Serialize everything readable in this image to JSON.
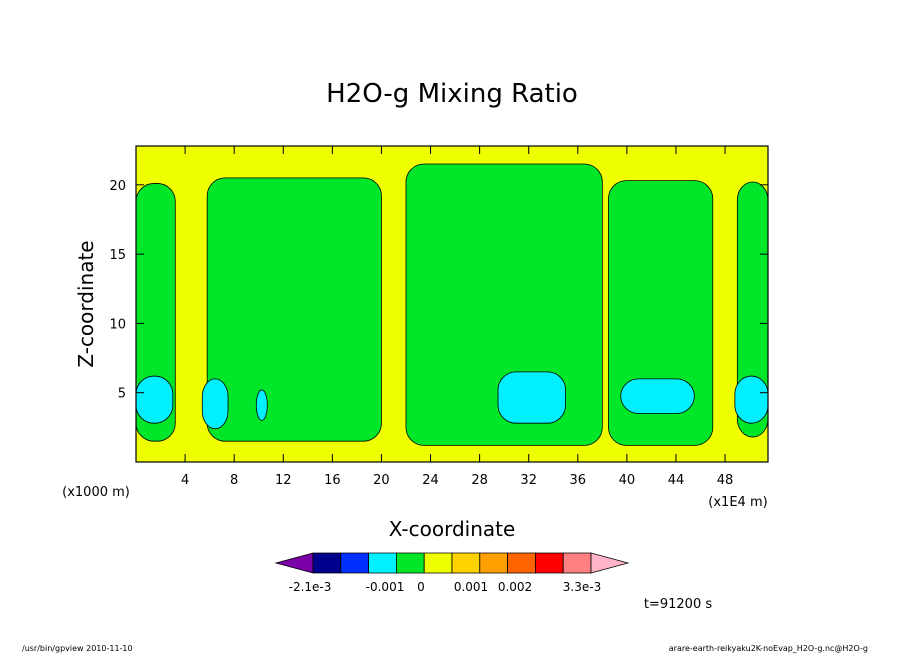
{
  "chart_data": {
    "type": "heatmap",
    "title": "H2O-g Mixing Ratio",
    "xlabel": "X-coordinate",
    "ylabel": "Z-coordinate",
    "x_unit_label": "(x1E4 m)",
    "y_unit_label": "(x1000 m)",
    "xlim": [
      0,
      51.5
    ],
    "ylim": [
      0,
      22.8
    ],
    "x_ticks": [
      "4",
      "8",
      "12",
      "16",
      "20",
      "24",
      "28",
      "32",
      "36",
      "40",
      "44",
      "48"
    ],
    "y_ticks": [
      "5",
      "10",
      "15",
      "20"
    ],
    "time_label": "t=91200 s",
    "colorbar": {
      "colors": [
        "#7a00a8",
        "#00008c",
        "#0030ff",
        "#00f0ff",
        "#00e628",
        "#f0ff00",
        "#ffd200",
        "#ffa000",
        "#ff6400",
        "#ff0000",
        "#ff8080",
        "#ffb4c8"
      ],
      "labels": [
        "-2.1e-3",
        "-0.001",
        "0",
        "0.001",
        "0.002",
        "3.3e-3"
      ]
    },
    "regions": [
      {
        "level": "green",
        "color": "#00e628",
        "x": [
          0,
          3.2
        ],
        "z": [
          1.5,
          20.1
        ]
      },
      {
        "level": "green",
        "color": "#00e628",
        "x": [
          5.8,
          20
        ],
        "z": [
          1.5,
          20.5
        ]
      },
      {
        "level": "green",
        "color": "#00e628",
        "x": [
          22,
          38
        ],
        "z": [
          1.2,
          21.5
        ]
      },
      {
        "level": "green",
        "color": "#00e628",
        "x": [
          38.5,
          47
        ],
        "z": [
          1.2,
          20.3
        ]
      },
      {
        "level": "green",
        "color": "#00e628",
        "x": [
          49,
          51.5
        ],
        "z": [
          1.8,
          20.2
        ]
      },
      {
        "level": "cyan",
        "color": "#00f0ff",
        "x": [
          0,
          3
        ],
        "z": [
          2.8,
          6.2
        ]
      },
      {
        "level": "cyan",
        "color": "#00f0ff",
        "x": [
          5.4,
          7.5
        ],
        "z": [
          2.4,
          6
        ]
      },
      {
        "level": "cyan",
        "color": "#00f0ff",
        "x": [
          9.8,
          10.7
        ],
        "z": [
          3,
          5.2
        ]
      },
      {
        "level": "cyan",
        "color": "#00f0ff",
        "x": [
          29.5,
          35
        ],
        "z": [
          2.8,
          6.5
        ]
      },
      {
        "level": "cyan",
        "color": "#00f0ff",
        "x": [
          39.5,
          45.5
        ],
        "z": [
          3.5,
          6
        ]
      },
      {
        "level": "cyan",
        "color": "#00f0ff",
        "x": [
          48.8,
          51.5
        ],
        "z": [
          2.8,
          6.2
        ]
      }
    ]
  },
  "footer": {
    "left": "/usr/bin/gpview   2010-11-10",
    "right": "arare-earth-reikyaku2K-noEvap_H2O-g.nc@H2O-g"
  }
}
